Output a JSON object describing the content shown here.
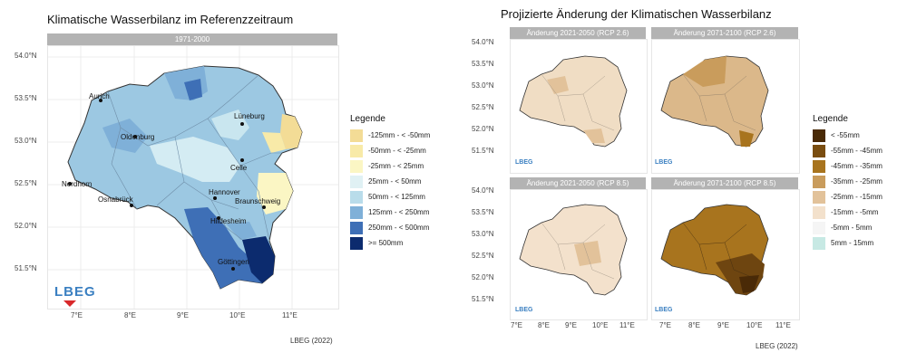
{
  "left": {
    "title": "Klimatische Wasserbilanz im Referenzzeitraum",
    "strip": "1971-2000",
    "lat_ticks": [
      "54.0°N",
      "53.5°N",
      "53.0°N",
      "52.5°N",
      "52.0°N",
      "51.5°N"
    ],
    "lon_ticks": [
      "7°E",
      "8°E",
      "9°E",
      "10°E",
      "11°E"
    ],
    "cities": [
      "Aurich",
      "Lüneburg",
      "Oldenburg",
      "Celle",
      "Nordhorn",
      "Hannover",
      "Braunschweig",
      "Osnabrück",
      "Hildesheim",
      "Göttingen"
    ],
    "legend_title": "Legende",
    "legend": [
      {
        "label": "-125mm - < -50mm",
        "color": "#f3dc96"
      },
      {
        "label": "-50mm - < -25mm",
        "color": "#f8eaa8"
      },
      {
        "label": "-25mm - < 25mm",
        "color": "#fbf6c4"
      },
      {
        "label": "25mm - < 50mm",
        "color": "#e0f1f4"
      },
      {
        "label": "50mm - < 125mm",
        "color": "#b9dcea"
      },
      {
        "label": "125mm - < 250mm",
        "color": "#7fb0d8"
      },
      {
        "label": "250mm - < 500mm",
        "color": "#3e6fb6"
      },
      {
        "label": ">= 500mm",
        "color": "#0c2b6e"
      }
    ],
    "logo": "LBEG",
    "credit": "LBEG (2022)"
  },
  "right": {
    "title": "Projizierte Änderung der Klimatischen Wasserbilanz",
    "panels": [
      {
        "strip": "Änderung 2021-2050 (RCP 2.6)",
        "logo": "LBEG"
      },
      {
        "strip": "Änderung 2071-2100 (RCP 2.6)",
        "logo": "LBEG"
      },
      {
        "strip": "Änderung 2021-2050 (RCP 8.5)",
        "logo": "LBEG"
      },
      {
        "strip": "Änderung 2071-2100 (RCP 8.5)",
        "logo": "LBEG"
      }
    ],
    "lat_ticks": [
      "54.0°N",
      "53.5°N",
      "53.0°N",
      "52.5°N",
      "52.0°N",
      "51.5°N"
    ],
    "lon_ticks": [
      "7°E",
      "8°E",
      "9°E",
      "10°E",
      "11°E"
    ],
    "legend_title": "Legende",
    "legend": [
      {
        "label": "< -55mm",
        "color": "#4a2a07"
      },
      {
        "label": "-55mm - -45mm",
        "color": "#7a4d10"
      },
      {
        "label": "-45mm - -35mm",
        "color": "#a8741e"
      },
      {
        "label": "-35mm - -25mm",
        "color": "#c99c5c"
      },
      {
        "label": "-25mm - -15mm",
        "color": "#e2c29a"
      },
      {
        "label": "-15mm - -5mm",
        "color": "#f3e1cc"
      },
      {
        "label": "-5mm - 5mm",
        "color": "#f5f5f5"
      },
      {
        "label": "5mm - 15mm",
        "color": "#c7e9e4"
      }
    ],
    "credit": "LBEG (2022)"
  }
}
